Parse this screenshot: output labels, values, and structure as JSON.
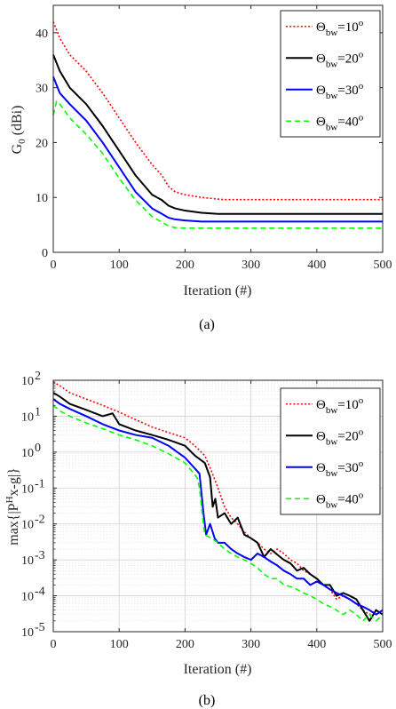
{
  "chart_data": [
    {
      "type": "line",
      "caption": "(a)",
      "xlabel": "Iteration (#)",
      "ylabel_main": "G",
      "ylabel_sub": "0",
      "ylabel_unit": " (dBi)",
      "xlim": [
        0,
        500
      ],
      "ylim": [
        0,
        45
      ],
      "yscale": "linear",
      "xticks": [
        "0",
        "100",
        "200",
        "300",
        "400",
        "500"
      ],
      "yticks": [
        "0",
        "10",
        "20",
        "30",
        "40"
      ],
      "grid": false,
      "legend_position": "top-right",
      "series": [
        {
          "name": "Θbw=10o",
          "label_main": "Θ",
          "label_sub": "bw",
          "label_eq": "=10",
          "label_sup": "o",
          "color": "#ff0000",
          "dash": "dotted",
          "x": [
            0,
            5,
            10,
            25,
            50,
            75,
            100,
            125,
            150,
            165,
            175,
            185,
            200,
            225,
            250,
            260,
            300,
            400,
            500
          ],
          "y": [
            42,
            40.5,
            39,
            36,
            33,
            29,
            24.5,
            20,
            16,
            14,
            12,
            11,
            10.5,
            10,
            9.7,
            9.6,
            9.6,
            9.6,
            9.6
          ]
        },
        {
          "name": "Θbw=20o",
          "label_main": "Θ",
          "label_sub": "bw",
          "label_eq": "=20",
          "label_sup": "o",
          "color": "#000000",
          "dash": "solid",
          "x": [
            0,
            5,
            10,
            25,
            50,
            75,
            100,
            125,
            150,
            165,
            175,
            185,
            200,
            225,
            250,
            300,
            400,
            500
          ],
          "y": [
            36,
            34.5,
            33,
            30,
            27,
            23,
            18.5,
            14,
            10.5,
            9.5,
            8.5,
            8,
            7.6,
            7.2,
            7.0,
            7.0,
            7.0,
            7.0
          ]
        },
        {
          "name": "Θbw=30o",
          "label_main": "Θ",
          "label_sub": "bw",
          "label_eq": "=30",
          "label_sup": "o",
          "color": "#0000ff",
          "dash": "solid",
          "x": [
            0,
            5,
            10,
            25,
            50,
            75,
            100,
            125,
            150,
            165,
            175,
            185,
            200,
            225,
            250,
            300,
            400,
            500
          ],
          "y": [
            32,
            30.5,
            29,
            27,
            24,
            20,
            15.5,
            11,
            8,
            7,
            6.3,
            6,
            5.8,
            5.6,
            5.6,
            5.6,
            5.6,
            5.6
          ]
        },
        {
          "name": "Θbw=40o",
          "label_main": "Θ",
          "label_sub": "bw",
          "label_eq": "=40",
          "label_sup": "o",
          "color": "#00ff00",
          "dash": "dashed",
          "x": [
            0,
            5,
            10,
            25,
            50,
            75,
            100,
            125,
            150,
            165,
            175,
            185,
            200,
            225,
            250,
            300,
            400,
            500
          ],
          "y": [
            25,
            27.5,
            27,
            24.5,
            21.5,
            18,
            13.5,
            9.5,
            6.5,
            5.5,
            4.8,
            4.5,
            4.4,
            4.4,
            4.4,
            4.4,
            4.4,
            4.4
          ]
        }
      ]
    },
    {
      "type": "line",
      "caption": "(b)",
      "xlabel": "Iteration (#)",
      "ylabel_pre": "max{|P",
      "ylabel_sup": "H",
      "ylabel_post": "x-g|}",
      "xlim": [
        0,
        500
      ],
      "ylim": [
        1e-05,
        100
      ],
      "yscale": "log",
      "xticks": [
        "0",
        "100",
        "200",
        "300",
        "400",
        "500"
      ],
      "yticks": [
        {
          "base": "10",
          "exp": "-5"
        },
        {
          "base": "10",
          "exp": "-4"
        },
        {
          "base": "10",
          "exp": "-3"
        },
        {
          "base": "10",
          "exp": "-2"
        },
        {
          "base": "10",
          "exp": "-1"
        },
        {
          "base": "10",
          "exp": "0"
        },
        {
          "base": "10",
          "exp": "1"
        },
        {
          "base": "10",
          "exp": "2"
        }
      ],
      "grid": true,
      "legend_position": "right",
      "series": [
        {
          "name": "Θbw=10o",
          "label_main": "Θ",
          "label_sub": "bw",
          "label_eq": "=10",
          "label_sup": "o",
          "color": "#ff0000",
          "dash": "dotted",
          "x": [
            0,
            10,
            25,
            50,
            75,
            100,
            125,
            150,
            175,
            200,
            215,
            230,
            240,
            250,
            260,
            270,
            280,
            290,
            300,
            310,
            320,
            330,
            340,
            350,
            360,
            370,
            380,
            390,
            400,
            410,
            420,
            430,
            440,
            450,
            460,
            470,
            480,
            490,
            500
          ],
          "y": [
            90,
            70,
            45,
            30,
            20,
            13,
            8,
            5,
            3.5,
            2.5,
            1.5,
            0.8,
            0.3,
            0.1,
            0.03,
            0.015,
            0.01,
            0.006,
            0.004,
            0.003,
            0.002,
            0.0015,
            0.002,
            0.0015,
            0.001,
            0.0008,
            0.0005,
            0.0004,
            0.0003,
            0.0002,
            0.00015,
            8e-05,
            0.0001,
            8e-05,
            6e-05,
            4e-05,
            3e-05,
            4e-05,
            3e-05
          ]
        },
        {
          "name": "Θbw=20o",
          "label_main": "Θ",
          "label_sub": "bw",
          "label_eq": "=20",
          "label_sup": "o",
          "color": "#000000",
          "dash": "solid",
          "x": [
            0,
            10,
            25,
            50,
            75,
            90,
            100,
            125,
            150,
            175,
            200,
            215,
            230,
            238,
            242,
            246,
            250,
            260,
            270,
            280,
            290,
            300,
            310,
            320,
            330,
            340,
            350,
            360,
            370,
            380,
            390,
            400,
            410,
            420,
            430,
            440,
            450,
            460,
            470,
            480,
            490,
            500
          ],
          "y": [
            45,
            35,
            22,
            15,
            10,
            12,
            6,
            4,
            3,
            2.2,
            1.5,
            0.8,
            0.5,
            0.2,
            0.03,
            0.05,
            0.015,
            0.02,
            0.01,
            0.015,
            0.005,
            0.004,
            0.003,
            0.0012,
            0.002,
            0.0014,
            0.001,
            0.0008,
            0.0005,
            0.0006,
            0.0004,
            0.0003,
            0.0002,
            0.0002,
            0.0001,
            0.00012,
            0.0001,
            8e-05,
            4e-05,
            2e-05,
            4e-05,
            3e-05
          ]
        },
        {
          "name": "Θbw=30o",
          "label_main": "Θ",
          "label_sub": "bw",
          "label_eq": "=30",
          "label_sup": "o",
          "color": "#0000ff",
          "dash": "solid",
          "x": [
            0,
            10,
            25,
            50,
            75,
            100,
            125,
            150,
            175,
            200,
            215,
            222,
            228,
            232,
            238,
            245,
            250,
            260,
            270,
            280,
            290,
            300,
            310,
            320,
            330,
            340,
            350,
            360,
            370,
            380,
            390,
            400,
            410,
            420,
            430,
            440,
            450,
            460,
            470,
            480,
            490,
            500
          ],
          "y": [
            30,
            22,
            16,
            10,
            6,
            4,
            3,
            2.5,
            1.5,
            0.7,
            0.35,
            0.25,
            0.02,
            0.005,
            0.01,
            0.004,
            0.003,
            0.003,
            0.002,
            0.0015,
            0.0012,
            0.001,
            0.0015,
            0.0012,
            0.0009,
            0.0007,
            0.0005,
            0.0004,
            0.0003,
            0.0003,
            0.0002,
            0.00025,
            0.0002,
            0.00015,
            0.00012,
            0.0001,
            8e-05,
            6e-05,
            5e-05,
            4e-05,
            3e-05,
            4e-05
          ]
        },
        {
          "name": "Θbw=40o",
          "label_main": "Θ",
          "label_sub": "bw",
          "label_eq": "=40",
          "label_sup": "o",
          "color": "#00ff00",
          "dash": "dashed",
          "x": [
            0,
            10,
            25,
            50,
            75,
            100,
            125,
            150,
            175,
            200,
            210,
            218,
            222,
            226,
            230,
            240,
            250,
            260,
            270,
            280,
            290,
            300,
            310,
            320,
            330,
            340,
            350,
            360,
            370,
            380,
            390,
            400,
            410,
            420,
            430,
            440,
            450,
            460,
            470,
            480,
            490,
            500
          ],
          "y": [
            20,
            14,
            10,
            6.5,
            4.5,
            3,
            2.2,
            1.5,
            0.9,
            0.5,
            0.3,
            0.2,
            0.1,
            0.02,
            0.005,
            0.004,
            0.003,
            0.002,
            0.0015,
            0.0012,
            0.001,
            0.0008,
            0.0006,
            0.0004,
            0.0003,
            0.0003,
            0.0002,
            0.00018,
            0.00015,
            0.00012,
            0.0001,
            8e-05,
            6e-05,
            5e-05,
            4e-05,
            3e-05,
            4e-05,
            3e-05,
            2e-05,
            3e-05,
            2e-05,
            3e-05
          ]
        }
      ]
    }
  ]
}
